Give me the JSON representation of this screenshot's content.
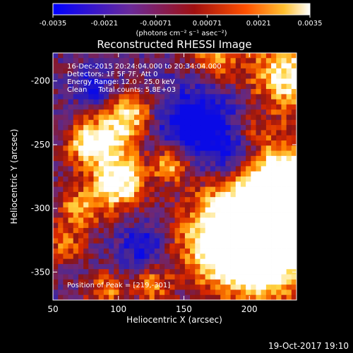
{
  "chart_data": {
    "type": "heatmap",
    "title": "Reconstructed RHESSI Image",
    "xlabel": "Heliocentric X (arcsec)",
    "ylabel": "Heliocentric Y (arcsec)",
    "xlim": [
      50,
      236
    ],
    "ylim": [
      -372,
      -178
    ],
    "xticks": [
      "50",
      "100",
      "150",
      "200"
    ],
    "yticks": [
      "-200",
      "-250",
      "-300",
      "-350"
    ],
    "colorbar": {
      "range": [
        -0.0035,
        0.0035
      ],
      "tick_labels": [
        "-0.0035",
        "-0.0021",
        "-0.00071",
        "0.00071",
        "0.0021",
        "0.0035"
      ],
      "units": "(photons cm⁻² s⁻¹ asec⁻²)"
    },
    "annotations": [
      "16-Dec-2015 20:24:04.000 to 20:34:04.000",
      "Detectors: 1F 5F 7F, Att 0",
      "Energy Range: 12.0 - 25.0 keV",
      "Clean     Total counts: 5.8E+03"
    ],
    "peak_label": "Position of Peak = [219,-301]",
    "colors": {
      "colormap": [
        "#0000ff",
        "#5a2aa0",
        "#7a1e1e",
        "#d02000",
        "#ff8000",
        "#ffd040",
        "#ffffff"
      ],
      "background": "#000000",
      "text": "#ffffff"
    }
  },
  "footer": {
    "timestamp": "19-Oct-2017 19:10"
  }
}
